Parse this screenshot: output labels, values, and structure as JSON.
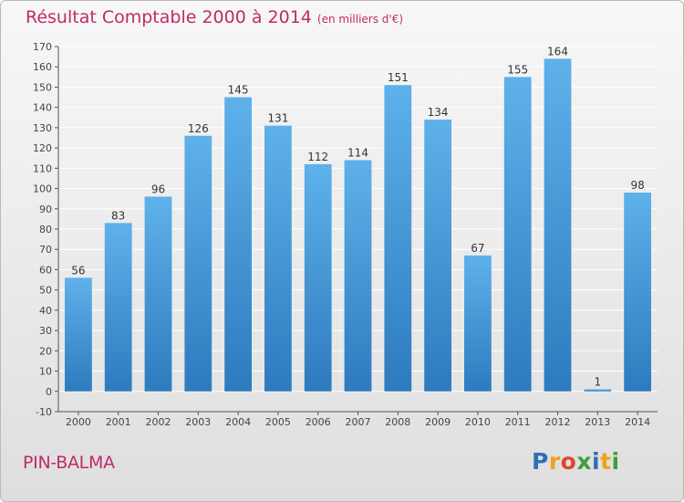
{
  "title": "Résultat Comptable 2000 à 2014",
  "unit_note": "(en milliers d'€)",
  "commune": "PIN-BALMA",
  "logo": {
    "text": "Proxiti",
    "letters": [
      {
        "ch": "P",
        "color": "#2f6fb4"
      },
      {
        "ch": "r",
        "color": "#f0a21a"
      },
      {
        "ch": "o",
        "color": "#e0452c"
      },
      {
        "ch": "x",
        "color": "#3f9f3a"
      },
      {
        "ch": "i",
        "color": "#2f6fb4"
      },
      {
        "ch": "t",
        "color": "#f0a21a"
      },
      {
        "ch": "i",
        "color": "#3f9f3a"
      }
    ]
  },
  "colors": {
    "bar_top": "#5fb1ea",
    "bar_bottom": "#2d7bbf",
    "title": "#c02a6a",
    "grid": "#ffffff"
  },
  "chart_data": {
    "type": "bar",
    "categories": [
      "2000",
      "2001",
      "2002",
      "2003",
      "2004",
      "2005",
      "2006",
      "2007",
      "2008",
      "2009",
      "2010",
      "2011",
      "2012",
      "2013",
      "2014"
    ],
    "values": [
      56,
      83,
      96,
      126,
      145,
      131,
      112,
      114,
      151,
      134,
      67,
      155,
      164,
      1,
      98
    ],
    "ylim": [
      -10,
      170
    ],
    "yticks": [
      -10,
      0,
      10,
      20,
      30,
      40,
      50,
      60,
      70,
      80,
      90,
      100,
      110,
      120,
      130,
      140,
      150,
      160,
      170
    ],
    "grid": true,
    "xlabel": "",
    "ylabel": ""
  }
}
